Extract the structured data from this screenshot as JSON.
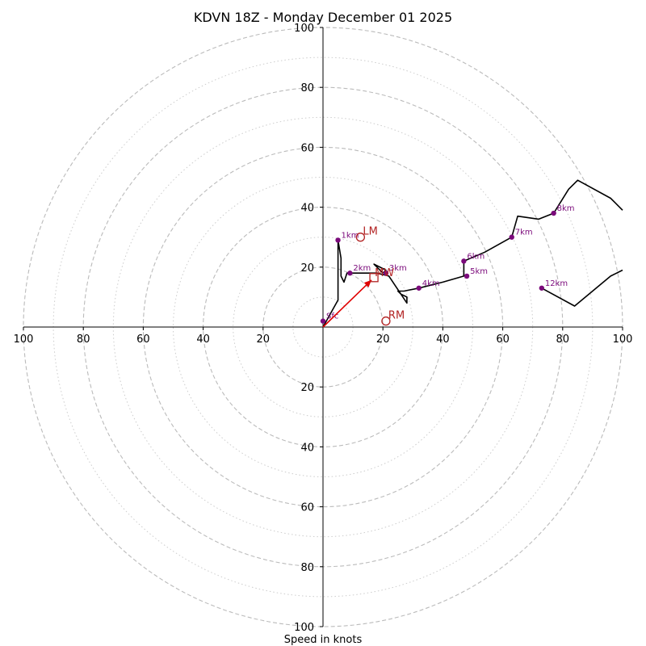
{
  "chart_data": {
    "type": "hodograph",
    "title": "KDVN 18Z - Monday December 01 2025",
    "xlabel": "Speed in knots",
    "range": [
      -100,
      100
    ],
    "rings_major": [
      20,
      40,
      60,
      80,
      100
    ],
    "rings_minor": [
      10,
      30,
      50,
      70,
      90
    ],
    "axis_ticks": [
      "100",
      "80",
      "60",
      "40",
      "20",
      "20",
      "40",
      "60",
      "80",
      "100"
    ],
    "axis_ticks_top": [
      "20",
      "40",
      "60",
      "80",
      "100"
    ],
    "axis_ticks_bottom": [
      "20",
      "40",
      "60",
      "80",
      "100"
    ],
    "axis_ticks_left": [
      "100",
      "80",
      "60",
      "40",
      "20"
    ],
    "axis_ticks_right": [
      "20",
      "40",
      "60",
      "80",
      "100"
    ],
    "trace": [
      [
        0,
        0
      ],
      [
        5,
        9
      ],
      [
        5,
        17
      ],
      [
        5,
        29
      ],
      [
        6,
        23
      ],
      [
        6,
        17
      ],
      [
        7,
        15
      ],
      [
        8,
        18
      ],
      [
        9,
        18
      ],
      [
        18,
        18
      ],
      [
        22,
        17
      ],
      [
        28,
        8
      ],
      [
        28,
        10
      ],
      [
        26,
        11
      ],
      [
        25,
        12
      ],
      [
        27,
        12
      ],
      [
        32,
        13
      ],
      [
        40,
        15
      ],
      [
        47,
        17
      ],
      [
        47,
        20
      ],
      [
        47,
        22
      ],
      [
        54,
        25
      ],
      [
        63,
        30
      ],
      [
        65,
        37
      ],
      [
        72,
        36
      ],
      [
        77,
        38
      ],
      [
        82,
        46
      ],
      [
        85,
        49
      ],
      [
        96,
        43
      ],
      [
        100,
        39
      ]
    ],
    "trace_hook": [
      [
        20,
        18
      ],
      [
        17,
        21
      ],
      [
        21,
        19
      ],
      [
        20,
        18
      ]
    ],
    "trace_upper": [
      [
        73,
        13
      ],
      [
        84,
        7
      ],
      [
        96,
        17
      ],
      [
        100,
        19
      ]
    ],
    "height_points": [
      {
        "label": "Sfc",
        "u": 0,
        "v": 2
      },
      {
        "label": "1km",
        "u": 5,
        "v": 29
      },
      {
        "label": "2km",
        "u": 9,
        "v": 18
      },
      {
        "label": "3km",
        "u": 21,
        "v": 18
      },
      {
        "label": "4km",
        "u": 32,
        "v": 13
      },
      {
        "label": "5km",
        "u": 48,
        "v": 17
      },
      {
        "label": "6km",
        "u": 47,
        "v": 22
      },
      {
        "label": "7km",
        "u": 63,
        "v": 30
      },
      {
        "label": "8km",
        "u": 77,
        "v": 38
      },
      {
        "label": "12km",
        "u": 73,
        "v": 13
      }
    ],
    "storm_motion": {
      "lm": {
        "label": "LM",
        "u": 12.5,
        "v": 30
      },
      "rm": {
        "label": "RM",
        "u": 21,
        "v": 2
      },
      "mw": {
        "label": "MW",
        "u": 17,
        "v": 16.5
      }
    },
    "colors": {
      "trace": "#000000",
      "points": "#7b0a7b",
      "storm": "#b22222",
      "arrow": "#e00000",
      "grid_major": "#bbbbbb",
      "grid_minor": "#cccccc"
    }
  }
}
